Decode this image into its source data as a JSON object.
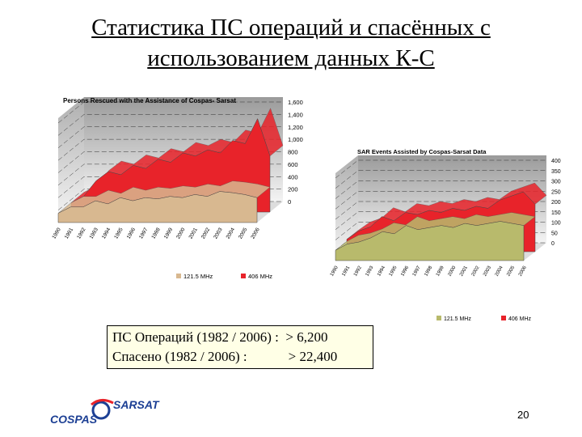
{
  "slide": {
    "title_line1": "Статистика ПС операций и спасённых с",
    "title_line2": "использованием данных К-С",
    "box_line1": "ПС Операций (1982 / 2006) :  > 6,200",
    "box_line2": "Спасено (1982 / 2006) :            > 22,400",
    "logo_top": "SARSAT",
    "logo_bottom": "COSPAS",
    "page_number": "20"
  },
  "chart_data": [
    {
      "type": "area3d",
      "title": "Persons Rescued with the Assistance of Cospas- Sarsat",
      "categories": [
        "1990",
        "1991",
        "1992",
        "1993",
        "1994",
        "1995",
        "1996",
        "1997",
        "1998",
        "1999",
        "2000",
        "2001",
        "2002",
        "2003",
        "2004",
        "2005",
        "2006"
      ],
      "series": [
        {
          "name": "121.5 MHz",
          "color": "#d8b890",
          "values": [
            150,
            250,
            250,
            350,
            300,
            400,
            350,
            400,
            380,
            420,
            400,
            450,
            420,
            500,
            480,
            450,
            400
          ]
        },
        {
          "name": "406 MHz",
          "color": "#e8232a",
          "values": [
            150,
            250,
            500,
            650,
            600,
            750,
            700,
            850,
            800,
            950,
            900,
            1000,
            950,
            1150,
            1100,
            1500,
            900
          ]
        }
      ],
      "ylim": [
        0,
        1600
      ],
      "yticks": [
        0,
        200,
        400,
        600,
        800,
        {
          "value": 1000,
          "label": "1,000"
        },
        {
          "value": 1200,
          "label": "1,200"
        },
        {
          "value": 1400,
          "label": "1,400"
        },
        {
          "value": 1600,
          "label": "1,600"
        }
      ],
      "grid": true
    },
    {
      "type": "area3d",
      "title": "SAR Events Assisted by Cospas-Sarsat Data",
      "categories": [
        "1990",
        "1991",
        "1992",
        "1993",
        "1994",
        "1995",
        "1996",
        "1997",
        "1998",
        "1999",
        "2000",
        "2001",
        "2002",
        "2003",
        "2004",
        "2005",
        "2006"
      ],
      "series": [
        {
          "name": "121.5 MHz",
          "color": "#b8ba6c",
          "values": [
            50,
            80,
            90,
            110,
            140,
            130,
            170,
            150,
            160,
            170,
            160,
            180,
            170,
            180,
            190,
            180,
            170
          ]
        },
        {
          "name": "406 MHz",
          "color": "#e8232a",
          "values": [
            60,
            100,
            120,
            170,
            150,
            190,
            180,
            200,
            190,
            210,
            200,
            220,
            210,
            250,
            270,
            290,
            230
          ]
        }
      ],
      "ylim": [
        0,
        400
      ],
      "yticks": [
        0,
        50,
        100,
        150,
        200,
        250,
        300,
        350,
        400
      ],
      "grid": true
    }
  ]
}
